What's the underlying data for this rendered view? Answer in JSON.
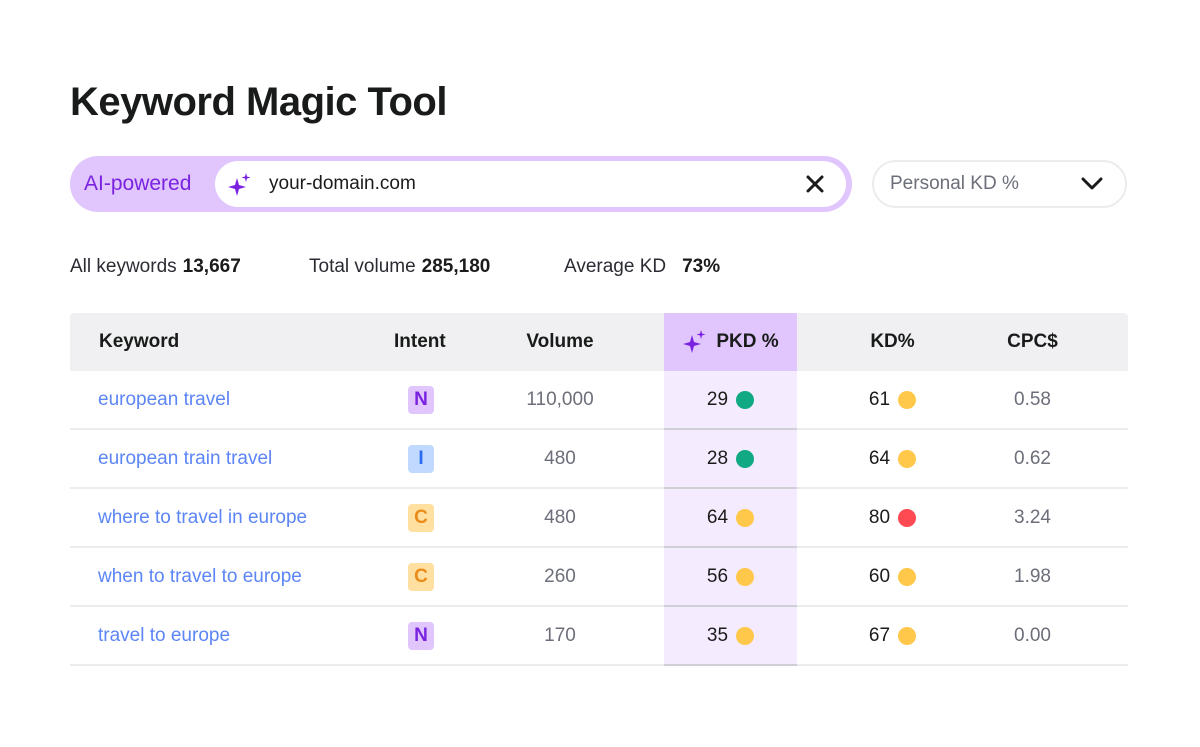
{
  "title": "Keyword Magic Tool",
  "search": {
    "badge": "AI-powered",
    "value": "your-domain.com"
  },
  "dropdown": {
    "selected": "Personal KD %"
  },
  "stats": [
    {
      "label": "All keywords",
      "value": "13,667"
    },
    {
      "label": "Total volume",
      "value": "285,180"
    },
    {
      "label": "Average KD",
      "value": "73%"
    }
  ],
  "table": {
    "headers": {
      "keyword": "Keyword",
      "intent": "Intent",
      "volume": "Volume",
      "pkd": "PKD %",
      "kd": "KD%",
      "cpc": "CPC$"
    },
    "rows": [
      {
        "keyword": "european travel",
        "intent": "N",
        "volume": "110,000",
        "pkd": "29",
        "pkd_level": "easy",
        "kd": "61",
        "kd_level": "medium",
        "cpc": "0.58"
      },
      {
        "keyword": "european train travel",
        "intent": "I",
        "volume": "480",
        "pkd": "28",
        "pkd_level": "easy",
        "kd": "64",
        "kd_level": "medium",
        "cpc": "0.62"
      },
      {
        "keyword": "where to travel in europe",
        "intent": "C",
        "volume": "480",
        "pkd": "64",
        "pkd_level": "medium",
        "kd": "80",
        "kd_level": "hard",
        "cpc": "3.24"
      },
      {
        "keyword": "when to travel to europe",
        "intent": "C",
        "volume": "260",
        "pkd": "56",
        "pkd_level": "medium",
        "kd": "60",
        "kd_level": "medium",
        "cpc": "1.98"
      },
      {
        "keyword": "travel to europe",
        "intent": "N",
        "volume": "170",
        "pkd": "35",
        "pkd_level": "medium",
        "kd": "67",
        "kd_level": "medium",
        "cpc": "0.00"
      }
    ]
  },
  "colors": {
    "accent": "#7a22e0",
    "link": "#5c85f6",
    "easy": "#10a983",
    "medium": "#ffc84a",
    "hard": "#ff4953",
    "intent": {
      "N": {
        "bg": "#e0c6fd",
        "fg": "#7a22e0"
      },
      "I": {
        "bg": "#c2d9ff",
        "fg": "#2b6cf0"
      },
      "C": {
        "bg": "#ffe0a0",
        "fg": "#ea8c1a"
      }
    }
  }
}
